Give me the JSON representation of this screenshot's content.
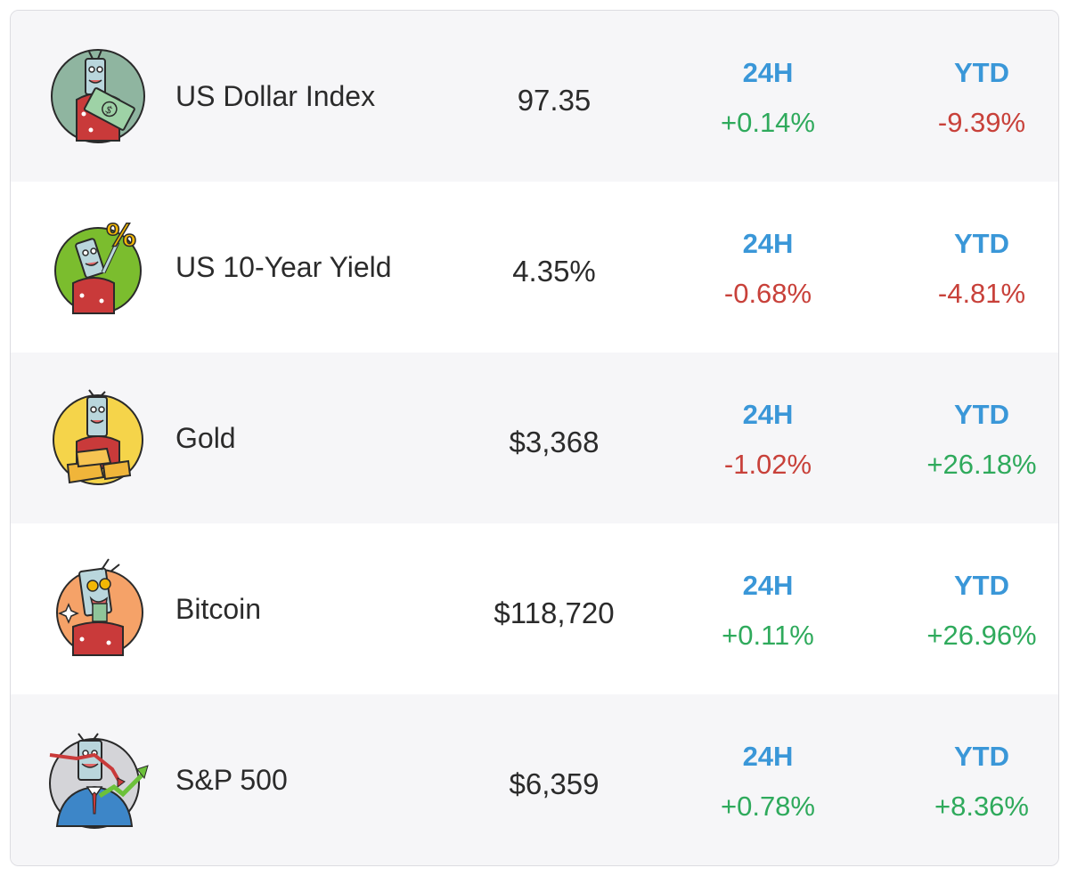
{
  "colors": {
    "label_blue": "#3a97d8",
    "positive_green": "#2faa5c",
    "negative_red": "#c8413a",
    "row_shade": "#f6f6f8"
  },
  "rows": [
    {
      "name": "US Dollar Index",
      "price": "97.35",
      "h24_label": "24H",
      "h24_value": "+0.14%",
      "h24_direction": "up",
      "ytd_label": "YTD",
      "ytd_value": "-9.39%",
      "ytd_direction": "down",
      "avatar_icon": "dollar-mascot-icon"
    },
    {
      "name": "US 10-Year Yield",
      "price": "4.35%",
      "h24_label": "24H",
      "h24_value": "-0.68%",
      "h24_direction": "down",
      "ytd_label": "YTD",
      "ytd_value": "-4.81%",
      "ytd_direction": "down",
      "avatar_icon": "yield-mascot-icon"
    },
    {
      "name": "Gold",
      "price": "$3,368",
      "h24_label": "24H",
      "h24_value": "-1.02%",
      "h24_direction": "down",
      "ytd_label": "YTD",
      "ytd_value": "+26.18%",
      "ytd_direction": "up",
      "avatar_icon": "gold-mascot-icon"
    },
    {
      "name": "Bitcoin",
      "price": "$118,720",
      "h24_label": "24H",
      "h24_value": "+0.11%",
      "h24_direction": "up",
      "ytd_label": "YTD",
      "ytd_value": "+26.96%",
      "ytd_direction": "up",
      "avatar_icon": "bitcoin-mascot-icon"
    },
    {
      "name": "S&P 500",
      "price": "$6,359",
      "h24_label": "24H",
      "h24_value": "+0.78%",
      "h24_direction": "up",
      "ytd_label": "YTD",
      "ytd_value": "+8.36%",
      "ytd_direction": "up",
      "avatar_icon": "sp500-mascot-icon"
    }
  ]
}
